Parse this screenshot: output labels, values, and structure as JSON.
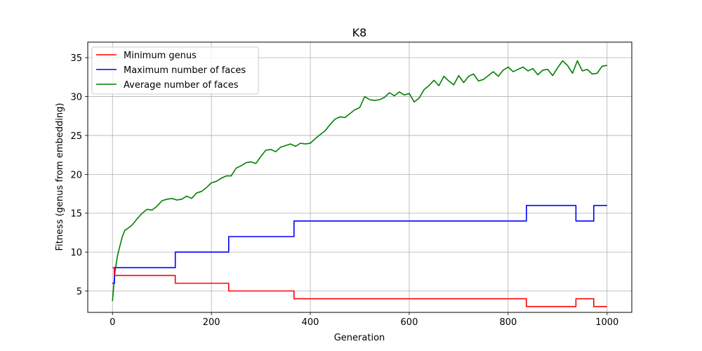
{
  "chart_data": {
    "type": "line",
    "title": "K8",
    "xlabel": "Generation",
    "ylabel": "Fitness (genus from embedding)",
    "xlim": [
      -50,
      1050
    ],
    "ylim": [
      2.25,
      37
    ],
    "xticks": [
      0,
      200,
      400,
      600,
      800,
      1000
    ],
    "yticks": [
      5,
      10,
      15,
      20,
      25,
      30,
      35
    ],
    "grid": true,
    "legend_position": "upper-left",
    "series": [
      {
        "name": "Minimum genus",
        "color": "#ff0000",
        "step": true,
        "points": [
          [
            0,
            8
          ],
          [
            4,
            7
          ],
          [
            127,
            6
          ],
          [
            235,
            5
          ],
          [
            367,
            4
          ],
          [
            837,
            3
          ],
          [
            937,
            4
          ],
          [
            973,
            3
          ],
          [
            1000,
            3
          ]
        ]
      },
      {
        "name": "Maximum number of faces",
        "color": "#0000ff",
        "step": true,
        "points": [
          [
            0,
            6
          ],
          [
            4,
            8
          ],
          [
            127,
            10
          ],
          [
            235,
            12
          ],
          [
            367,
            14
          ],
          [
            837,
            16
          ],
          [
            937,
            14
          ],
          [
            973,
            16
          ],
          [
            1000,
            16
          ]
        ]
      },
      {
        "name": "Average number of faces",
        "color": "#008000",
        "step": false,
        "points": [
          [
            0,
            3.7
          ],
          [
            5,
            7.5
          ],
          [
            10,
            9.5
          ],
          [
            15,
            10.8
          ],
          [
            20,
            12.0
          ],
          [
            25,
            12.8
          ],
          [
            30,
            13.0
          ],
          [
            40,
            13.5
          ],
          [
            50,
            14.3
          ],
          [
            60,
            15.0
          ],
          [
            70,
            15.5
          ],
          [
            80,
            15.4
          ],
          [
            90,
            15.9
          ],
          [
            100,
            16.6
          ],
          [
            110,
            16.8
          ],
          [
            120,
            16.9
          ],
          [
            130,
            16.7
          ],
          [
            140,
            16.8
          ],
          [
            150,
            17.2
          ],
          [
            160,
            16.9
          ],
          [
            170,
            17.6
          ],
          [
            180,
            17.8
          ],
          [
            190,
            18.3
          ],
          [
            200,
            18.9
          ],
          [
            210,
            19.1
          ],
          [
            220,
            19.5
          ],
          [
            230,
            19.8
          ],
          [
            240,
            19.8
          ],
          [
            250,
            20.8
          ],
          [
            260,
            21.1
          ],
          [
            270,
            21.5
          ],
          [
            280,
            21.6
          ],
          [
            290,
            21.4
          ],
          [
            300,
            22.3
          ],
          [
            310,
            23.1
          ],
          [
            320,
            23.2
          ],
          [
            330,
            22.9
          ],
          [
            340,
            23.5
          ],
          [
            350,
            23.7
          ],
          [
            360,
            23.9
          ],
          [
            370,
            23.6
          ],
          [
            380,
            24.0
          ],
          [
            390,
            23.9
          ],
          [
            400,
            24.0
          ],
          [
            410,
            24.6
          ],
          [
            420,
            25.1
          ],
          [
            430,
            25.6
          ],
          [
            440,
            26.4
          ],
          [
            450,
            27.1
          ],
          [
            460,
            27.4
          ],
          [
            470,
            27.3
          ],
          [
            480,
            27.8
          ],
          [
            490,
            28.3
          ],
          [
            500,
            28.6
          ],
          [
            510,
            30.0
          ],
          [
            520,
            29.6
          ],
          [
            530,
            29.5
          ],
          [
            540,
            29.6
          ],
          [
            550,
            29.9
          ],
          [
            560,
            30.5
          ],
          [
            570,
            30.1
          ],
          [
            580,
            30.6
          ],
          [
            590,
            30.2
          ],
          [
            600,
            30.4
          ],
          [
            610,
            29.3
          ],
          [
            620,
            29.8
          ],
          [
            630,
            30.9
          ],
          [
            640,
            31.4
          ],
          [
            650,
            32.1
          ],
          [
            660,
            31.4
          ],
          [
            670,
            32.6
          ],
          [
            680,
            32.0
          ],
          [
            690,
            31.5
          ],
          [
            700,
            32.7
          ],
          [
            710,
            31.8
          ],
          [
            720,
            32.6
          ],
          [
            730,
            32.9
          ],
          [
            740,
            32.0
          ],
          [
            750,
            32.2
          ],
          [
            760,
            32.7
          ],
          [
            770,
            33.2
          ],
          [
            780,
            32.6
          ],
          [
            790,
            33.4
          ],
          [
            800,
            33.8
          ],
          [
            810,
            33.2
          ],
          [
            820,
            33.5
          ],
          [
            830,
            33.8
          ],
          [
            840,
            33.3
          ],
          [
            850,
            33.6
          ],
          [
            860,
            32.8
          ],
          [
            870,
            33.4
          ],
          [
            880,
            33.5
          ],
          [
            890,
            32.7
          ],
          [
            900,
            33.7
          ],
          [
            910,
            34.6
          ],
          [
            920,
            34.0
          ],
          [
            930,
            33.0
          ],
          [
            940,
            34.6
          ],
          [
            950,
            33.3
          ],
          [
            960,
            33.5
          ],
          [
            970,
            32.9
          ],
          [
            980,
            33.0
          ],
          [
            990,
            33.9
          ],
          [
            1000,
            34.0
          ]
        ]
      }
    ]
  }
}
